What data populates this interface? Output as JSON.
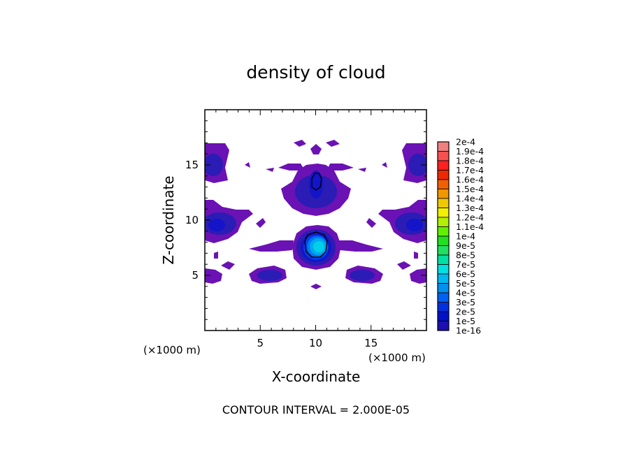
{
  "chart_data": {
    "type": "heatmap",
    "title": "density of cloud",
    "xlabel": "X-coordinate",
    "ylabel": "Z-coordinate",
    "x_unit": "(×1000 m)",
    "z_unit": "(×1000 m)",
    "xlim": [
      0,
      20
    ],
    "ylim": [
      0,
      20
    ],
    "x_ticks": [
      "5",
      "10",
      "15"
    ],
    "y_ticks": [
      "5",
      "10",
      "15"
    ],
    "colorbar": {
      "labels": [
        "2e-4",
        "1.9e-4",
        "1.8e-4",
        "1.7e-4",
        "1.6e-4",
        "1.5e-4",
        "1.4e-4",
        "1.3e-4",
        "1.2e-4",
        "1.1e-4",
        "1e-4",
        "9e-5",
        "8e-5",
        "7e-5",
        "6e-5",
        "5e-5",
        "4e-5",
        "3e-5",
        "2e-5",
        "1e-5",
        "1e-16"
      ],
      "colors": [
        "#f08080",
        "#f85050",
        "#ff2020",
        "#f02800",
        "#f06000",
        "#f09800",
        "#f0c800",
        "#f0f000",
        "#b0f000",
        "#60f000",
        "#20e020",
        "#20e060",
        "#00e0a0",
        "#00e0e0",
        "#00b8f0",
        "#0090f0",
        "#0060f0",
        "#0030e0",
        "#0010c8",
        "#1c10b0",
        "#6010b0"
      ]
    },
    "cloud_regions": [
      {
        "x": 10.0,
        "z": 7.6,
        "peak": "7e-5"
      },
      {
        "x": 10.0,
        "z": 13.5,
        "peak": "3e-5"
      },
      {
        "x": 0.5,
        "z": 10.0,
        "peak": "2e-5"
      },
      {
        "x": 19.5,
        "z": 10.0,
        "peak": "2e-5"
      },
      {
        "x": 0.5,
        "z": 15.5,
        "peak": "1e-5"
      },
      {
        "x": 19.5,
        "z": 15.5,
        "peak": "1e-5"
      },
      {
        "x": 6.5,
        "z": 5.0,
        "peak": "1e-5"
      },
      {
        "x": 13.5,
        "z": 5.0,
        "peak": "1e-5"
      },
      {
        "x": 0.5,
        "z": 5.0,
        "peak": "1e-5"
      },
      {
        "x": 19.5,
        "z": 5.0,
        "peak": "1e-5"
      }
    ],
    "footer": "CONTOUR INTERVAL = 2.000E-05"
  }
}
